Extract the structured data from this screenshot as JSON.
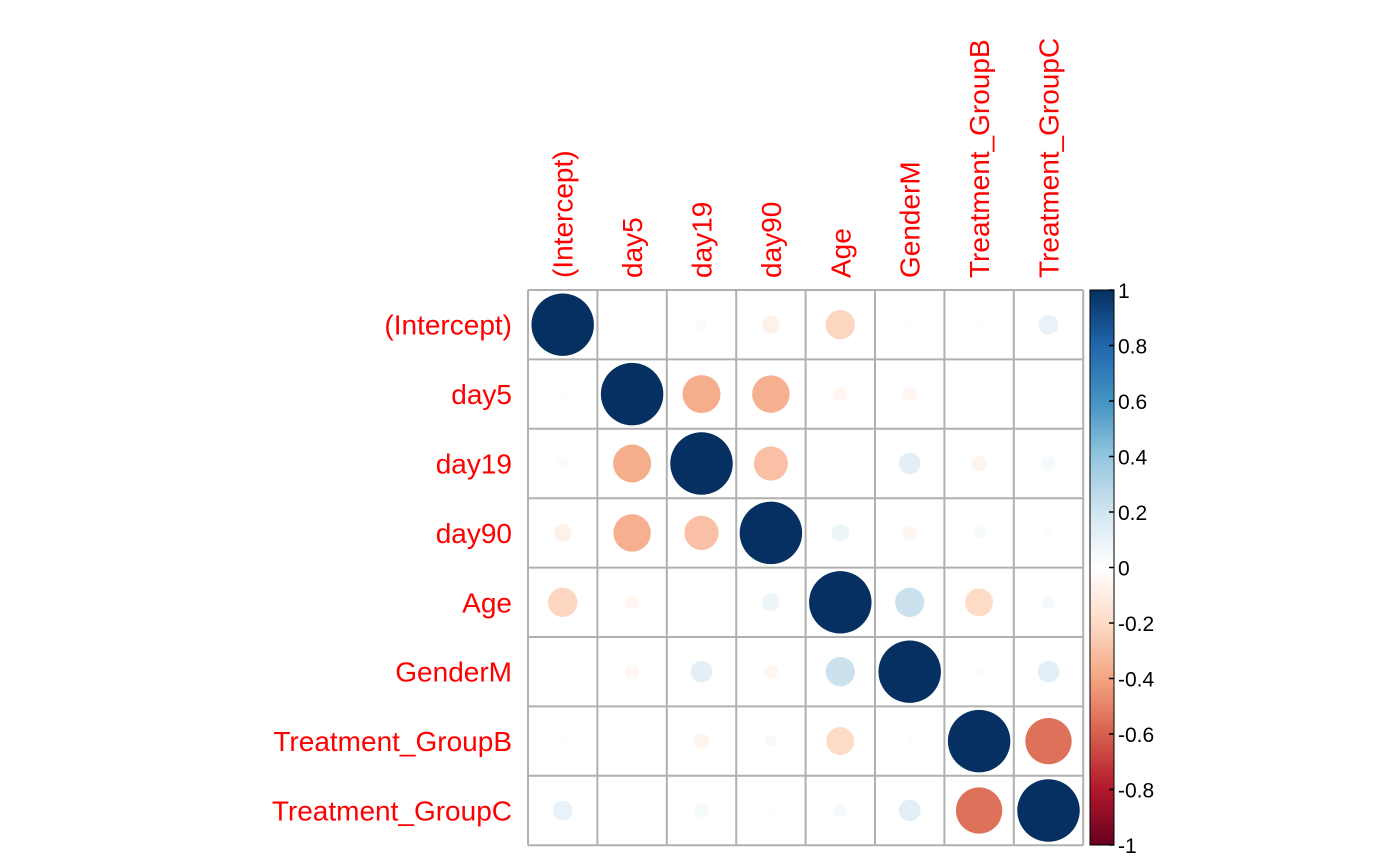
{
  "chart_data": {
    "type": "heatmap",
    "style": "correlation-circles",
    "title": "",
    "variables": [
      "(Intercept)",
      "day5",
      "day19",
      "day90",
      "Age",
      "GenderM",
      "Treatment_GroupB",
      "Treatment_GroupC"
    ],
    "matrix": [
      [
        1.0,
        -0.01,
        0.03,
        -0.08,
        -0.22,
        -0.01,
        -0.02,
        0.1
      ],
      [
        -0.01,
        1.0,
        -0.37,
        -0.36,
        -0.05,
        -0.05,
        0.0,
        -0.01
      ],
      [
        0.03,
        -0.37,
        1.0,
        -0.3,
        0.0,
        0.12,
        -0.06,
        0.05
      ],
      [
        -0.08,
        -0.36,
        -0.3,
        1.0,
        0.08,
        -0.05,
        0.04,
        -0.02
      ],
      [
        -0.22,
        -0.05,
        0.0,
        0.08,
        1.0,
        0.22,
        -0.2,
        0.05
      ],
      [
        -0.01,
        -0.05,
        0.12,
        -0.05,
        0.22,
        1.0,
        -0.02,
        0.12
      ],
      [
        -0.02,
        0.0,
        -0.06,
        0.04,
        -0.2,
        -0.02,
        1.0,
        -0.55
      ],
      [
        0.1,
        -0.01,
        0.05,
        -0.02,
        0.05,
        0.12,
        -0.55,
        1.0
      ]
    ],
    "colorbar": {
      "range": [
        -1,
        1
      ],
      "ticks": [
        "1",
        "0.8",
        "0.6",
        "0.4",
        "0.2",
        "0",
        "-0.2",
        "-0.4",
        "-0.6",
        "-0.8",
        "-1"
      ],
      "colors": [
        "#67001f",
        "#b2182b",
        "#d6604d",
        "#f4a582",
        "#fddbc7",
        "#ffffff",
        "#d1e5f0",
        "#92c5de",
        "#4393c3",
        "#2166ac",
        "#053061"
      ]
    },
    "grid": true,
    "legend": "right"
  }
}
